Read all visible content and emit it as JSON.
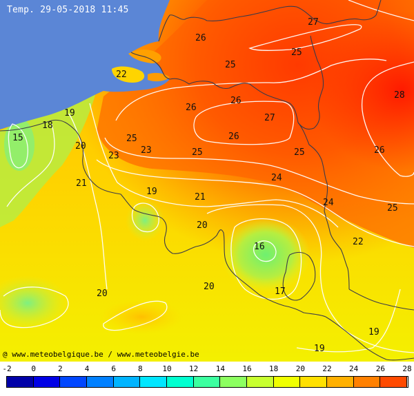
{
  "title": "Temp. 29-05-2018 11:45",
  "credit": "@ www.meteobelgique.be / www.meteobelgie.be",
  "colors": {
    "sea": "#5b86d6",
    "isoline": "#ffffff",
    "border": "#3a3a4a"
  },
  "isotherm_labels": [
    {
      "id": "l27a",
      "text": "27"
    },
    {
      "id": "l26a",
      "text": "26"
    },
    {
      "id": "l25a",
      "text": "25"
    },
    {
      "id": "l25b",
      "text": "25"
    },
    {
      "id": "l22",
      "text": "22"
    },
    {
      "id": "l28",
      "text": "28"
    },
    {
      "id": "l26b",
      "text": "26"
    },
    {
      "id": "l26c",
      "text": "26"
    },
    {
      "id": "l27b",
      "text": "27"
    },
    {
      "id": "l19a",
      "text": "19"
    },
    {
      "id": "l18",
      "text": "18"
    },
    {
      "id": "l15",
      "text": "15"
    },
    {
      "id": "l25c",
      "text": "25"
    },
    {
      "id": "l26d",
      "text": "26"
    },
    {
      "id": "l20a",
      "text": "20"
    },
    {
      "id": "l23a",
      "text": "23"
    },
    {
      "id": "l25d",
      "text": "25"
    },
    {
      "id": "l23b",
      "text": "23"
    },
    {
      "id": "l25e",
      "text": "25"
    },
    {
      "id": "l26e",
      "text": "26"
    },
    {
      "id": "l21a",
      "text": "21"
    },
    {
      "id": "l19b",
      "text": "19"
    },
    {
      "id": "l24a",
      "text": "24"
    },
    {
      "id": "l21b",
      "text": "21"
    },
    {
      "id": "l24b",
      "text": "24"
    },
    {
      "id": "l25f",
      "text": "25"
    },
    {
      "id": "l20b",
      "text": "20"
    },
    {
      "id": "l16",
      "text": "16"
    },
    {
      "id": "l22b",
      "text": "22"
    },
    {
      "id": "l20c",
      "text": "20"
    },
    {
      "id": "l20d",
      "text": "20"
    },
    {
      "id": "l17",
      "text": "17"
    },
    {
      "id": "l19c",
      "text": "19"
    },
    {
      "id": "l19d",
      "text": "19"
    }
  ],
  "legend": {
    "ticks": [
      "-2",
      "0",
      "2",
      "4",
      "6",
      "8",
      "10",
      "12",
      "14",
      "16",
      "18",
      "20",
      "22",
      "24",
      "26",
      "28"
    ],
    "colors": [
      "#0000a8",
      "#0000e6",
      "#0046ff",
      "#0080ff",
      "#00b4ff",
      "#00e6ff",
      "#00ffd0",
      "#3cffa0",
      "#8cff60",
      "#c8ff30",
      "#f0ff00",
      "#ffe000",
      "#ffb000",
      "#ff8000",
      "#ff4a00"
    ]
  }
}
